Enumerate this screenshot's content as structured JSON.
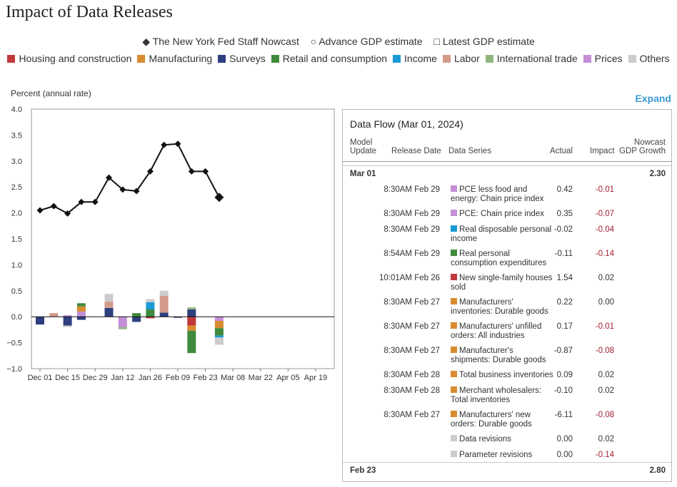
{
  "page": {
    "title": "Impact of Data Releases",
    "expand_label": "Expand"
  },
  "legend_top": [
    {
      "symbol": "◆",
      "label": "The New York Fed Staff Nowcast"
    },
    {
      "symbol": "○",
      "label": "Advance GDP estimate"
    },
    {
      "symbol": "□",
      "label": "Latest GDP estimate"
    }
  ],
  "legend_categories": [
    {
      "label": "Housing and construction",
      "color": "#c0393b"
    },
    {
      "label": "Manufacturing",
      "color": "#d98b30"
    },
    {
      "label": "Surveys",
      "color": "#2e3f7f"
    },
    {
      "label": "Retail and consumption",
      "color": "#3f8a3b"
    },
    {
      "label": "Income",
      "color": "#1c9ad6"
    },
    {
      "label": "Labor",
      "color": "#d49a8a"
    },
    {
      "label": "International trade",
      "color": "#8fb77f"
    },
    {
      "label": "Prices",
      "color": "#c58ed8"
    },
    {
      "label": "Others",
      "color": "#cccccc"
    }
  ],
  "chart_data": {
    "type": "bar",
    "ylabel": "Percent (annual rate)",
    "ylim": [
      -1.0,
      4.0
    ],
    "yticks": [
      "4.0",
      "3.5",
      "3.0",
      "2.5",
      "2.0",
      "1.5",
      "1.0",
      "0.5",
      "0.0",
      "−0.5",
      "−1.0"
    ],
    "xtick_labels": [
      "Dec 01",
      "Dec 15",
      "Dec 29",
      "Jan 12",
      "Jan 26",
      "Feb 09",
      "Feb 23",
      "Mar 08",
      "Mar 22",
      "Apr 05",
      "Apr 19"
    ],
    "weeks": [
      "Dec 01",
      "Dec 08",
      "Dec 15",
      "Dec 22",
      "Dec 29",
      "Jan 05",
      "Jan 12",
      "Jan 19",
      "Jan 26",
      "Feb 02",
      "Feb 09",
      "Feb 16",
      "Feb 23",
      "Mar 01"
    ],
    "nowcast": [
      2.05,
      2.13,
      1.99,
      2.21,
      2.21,
      2.68,
      2.45,
      2.42,
      2.8,
      3.31,
      3.33,
      2.8,
      2.8,
      2.3
    ],
    "grid": false,
    "stacks": [
      [
        {
          "cat": "Surveys",
          "value": -0.15
        }
      ],
      [
        {
          "cat": "Labor",
          "value": 0.07
        }
      ],
      [
        {
          "cat": "Surveys",
          "value": -0.17
        },
        {
          "cat": "Others",
          "value": -0.03
        },
        {
          "cat": "Prices",
          "value": 0.03
        }
      ],
      [
        {
          "cat": "Prices",
          "value": 0.1
        },
        {
          "cat": "Manufacturing",
          "value": 0.1
        },
        {
          "cat": "Retail and consumption",
          "value": 0.06
        },
        {
          "cat": "Surveys",
          "value": -0.06
        }
      ],
      [],
      [
        {
          "cat": "Surveys",
          "value": 0.17
        },
        {
          "cat": "Labor",
          "value": 0.12
        },
        {
          "cat": "Others",
          "value": 0.15
        }
      ],
      [
        {
          "cat": "Prices",
          "value": -0.2
        },
        {
          "cat": "International trade",
          "value": -0.04
        }
      ],
      [
        {
          "cat": "Retail and consumption",
          "value": 0.07
        },
        {
          "cat": "Surveys",
          "value": -0.1
        }
      ],
      [
        {
          "cat": "Retail and consumption",
          "value": 0.14
        },
        {
          "cat": "Income",
          "value": 0.14
        },
        {
          "cat": "Others",
          "value": 0.06
        },
        {
          "cat": "Housing and construction",
          "value": -0.03
        }
      ],
      [
        {
          "cat": "Surveys",
          "value": 0.08
        },
        {
          "cat": "Labor",
          "value": 0.32
        },
        {
          "cat": "Others",
          "value": 0.1
        }
      ],
      [
        {
          "cat": "Surveys",
          "value": -0.02
        }
      ],
      [
        {
          "cat": "Surveys",
          "value": 0.14
        },
        {
          "cat": "International trade",
          "value": 0.04
        },
        {
          "cat": "Housing and construction",
          "value": -0.17
        },
        {
          "cat": "Manufacturing",
          "value": -0.1
        },
        {
          "cat": "Retail and consumption",
          "value": -0.43
        }
      ],
      [],
      [
        {
          "cat": "Prices",
          "value": -0.08
        },
        {
          "cat": "Manufacturing",
          "value": -0.14
        },
        {
          "cat": "Retail and consumption",
          "value": -0.14
        },
        {
          "cat": "Income",
          "value": -0.04
        },
        {
          "cat": "Others",
          "value": -0.14
        }
      ]
    ]
  },
  "data_flow": {
    "title": "Data Flow (Mar 01, 2024)",
    "headers": {
      "model_update": "Model\nUpdate",
      "release_date": "Release Date",
      "data_series": "Data Series",
      "actual": "Actual",
      "impact": "Impact",
      "nowcast": "Nowcast\nGDP Growth"
    },
    "update1": {
      "date": "Mar 01",
      "nowcast": "2.30"
    },
    "rows": [
      {
        "release": "8:30AM Feb 29",
        "series": "PCE less food and energy: Chain price index",
        "color": "#c58ed8",
        "actual": "0.42",
        "impact": "-0.01",
        "neg": true
      },
      {
        "release": "8:30AM Feb 29",
        "series": "PCE: Chain price index",
        "color": "#c58ed8",
        "actual": "0.35",
        "impact": "-0.07",
        "neg": true
      },
      {
        "release": "8:30AM Feb 29",
        "series": "Real disposable personal income",
        "color": "#1c9ad6",
        "actual": "-0.02",
        "impact": "-0.04",
        "neg": true
      },
      {
        "release": "8:54AM Feb 29",
        "series": "Real personal consumption expenditures",
        "color": "#3f8a3b",
        "actual": "-0.11",
        "impact": "-0.14",
        "neg": true
      },
      {
        "release": "10:01AM Feb 26",
        "series": "New single-family houses sold",
        "color": "#c0393b",
        "actual": "1.54",
        "impact": "0.02",
        "neg": false
      },
      {
        "release": "8:30AM Feb 27",
        "series": "Manufacturers' inventories: Durable goods",
        "color": "#d98b30",
        "actual": "0.22",
        "impact": "0.00",
        "neg": false
      },
      {
        "release": "8:30AM Feb 27",
        "series": "Manufacturers' unfilled orders: All industries",
        "color": "#d98b30",
        "actual": "0.17",
        "impact": "-0.01",
        "neg": true
      },
      {
        "release": "8:30AM Feb 27",
        "series": "Manufacturer's shipments: Durable goods",
        "color": "#d98b30",
        "actual": "-0.87",
        "impact": "-0.08",
        "neg": true
      },
      {
        "release": "8:30AM Feb 28",
        "series": "Total business inventories",
        "color": "#d98b30",
        "actual": "0.09",
        "impact": "0.02",
        "neg": false
      },
      {
        "release": "8:30AM Feb 28",
        "series": "Merchant wholesalers: Total inventories",
        "color": "#d98b30",
        "actual": "-0.10",
        "impact": "0.02",
        "neg": false
      },
      {
        "release": "8:30AM Feb 27",
        "series": "Manufacturers' new orders: Durable goods",
        "color": "#d98b30",
        "actual": "-6.11",
        "impact": "-0.08",
        "neg": true
      },
      {
        "release": "",
        "series": "Data revisions",
        "color": "#cccccc",
        "actual": "0.00",
        "impact": "0.02",
        "neg": false
      },
      {
        "release": "",
        "series": "Parameter revisions",
        "color": "#cccccc",
        "actual": "0.00",
        "impact": "-0.14",
        "neg": true
      }
    ],
    "update2": {
      "date": "Feb 23",
      "nowcast": "2.80"
    }
  }
}
